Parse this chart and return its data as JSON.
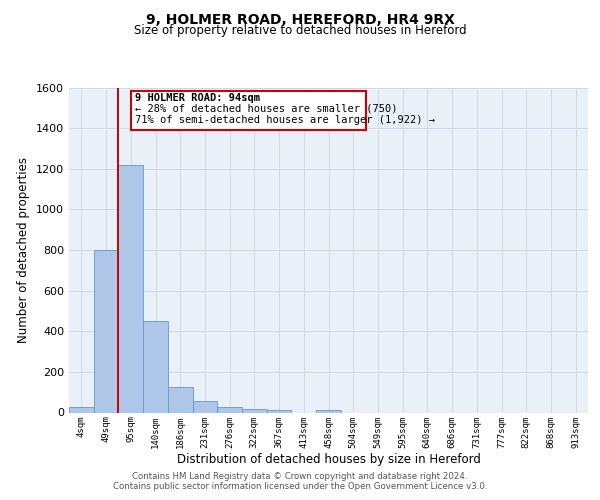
{
  "title1": "9, HOLMER ROAD, HEREFORD, HR4 9RX",
  "title2": "Size of property relative to detached houses in Hereford",
  "xlabel": "Distribution of detached houses by size in Hereford",
  "ylabel": "Number of detached properties",
  "bin_labels": [
    "4sqm",
    "49sqm",
    "95sqm",
    "140sqm",
    "186sqm",
    "231sqm",
    "276sqm",
    "322sqm",
    "367sqm",
    "413sqm",
    "458sqm",
    "504sqm",
    "549sqm",
    "595sqm",
    "640sqm",
    "686sqm",
    "731sqm",
    "777sqm",
    "822sqm",
    "868sqm",
    "913sqm"
  ],
  "bar_heights": [
    25,
    800,
    1220,
    450,
    125,
    55,
    25,
    15,
    10,
    0,
    10,
    0,
    0,
    0,
    0,
    0,
    0,
    0,
    0,
    0,
    0
  ],
  "bar_color": "#aec6e8",
  "bar_edge_color": "#5b9bd5",
  "property_line_color": "#cc0000",
  "ylim": [
    0,
    1600
  ],
  "yticks": [
    0,
    200,
    400,
    600,
    800,
    1000,
    1200,
    1400,
    1600
  ],
  "annotation_title": "9 HOLMER ROAD: 94sqm",
  "annotation_line1": "← 28% of detached houses are smaller (750)",
  "annotation_line2": "71% of semi-detached houses are larger (1,922) →",
  "annotation_box_color": "#ffffff",
  "annotation_box_edge": "#cc0000",
  "footer1": "Contains HM Land Registry data © Crown copyright and database right 2024.",
  "footer2": "Contains public sector information licensed under the Open Government Licence v3.0.",
  "grid_color": "#d0d8e8",
  "background_color": "#eaf0f8",
  "fig_background": "#ffffff"
}
